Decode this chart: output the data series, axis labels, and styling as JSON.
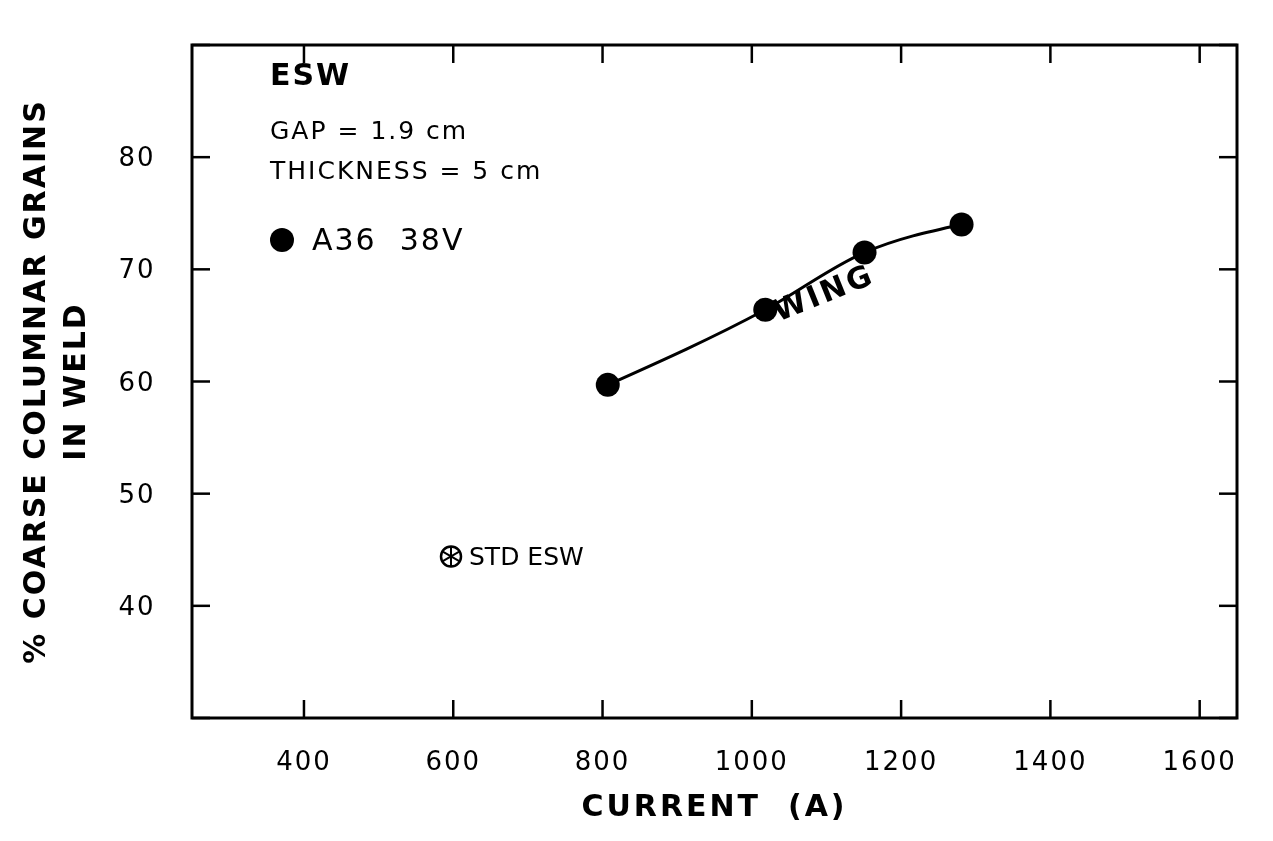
{
  "chart_data": {
    "type": "line",
    "xlabel": "CURRENT  (A)",
    "ylabel": "% COARSE COLUMNAR GRAINS\nIN WELD",
    "xlim": [
      250,
      1650
    ],
    "xticks": [
      400,
      600,
      800,
      1000,
      1200,
      1400,
      1600
    ],
    "ylim": [
      30,
      90
    ],
    "yticks": [
      {
        "value": 30,
        "label": null
      },
      40,
      50,
      60,
      70,
      80,
      {
        "value": 90,
        "label": null
      }
    ],
    "series": [
      {
        "name": "A36  38V",
        "color": "#000000",
        "marker": "circle",
        "x": [
          807,
          1018,
          1151,
          1281
        ],
        "values": [
          59.7,
          66.4,
          71.5,
          74
        ]
      },
      {
        "name": "STD ESW",
        "color": "#000000",
        "type": "scatter",
        "marker": "circle",
        "x": [
          597
        ],
        "values": [
          44.4
        ]
      }
    ],
    "annotations": [
      "ESW",
      "GAP = 1.9 cm",
      "THICKNESS = 5 cm",
      "WING"
    ],
    "legend": "left",
    "grid": false
  }
}
